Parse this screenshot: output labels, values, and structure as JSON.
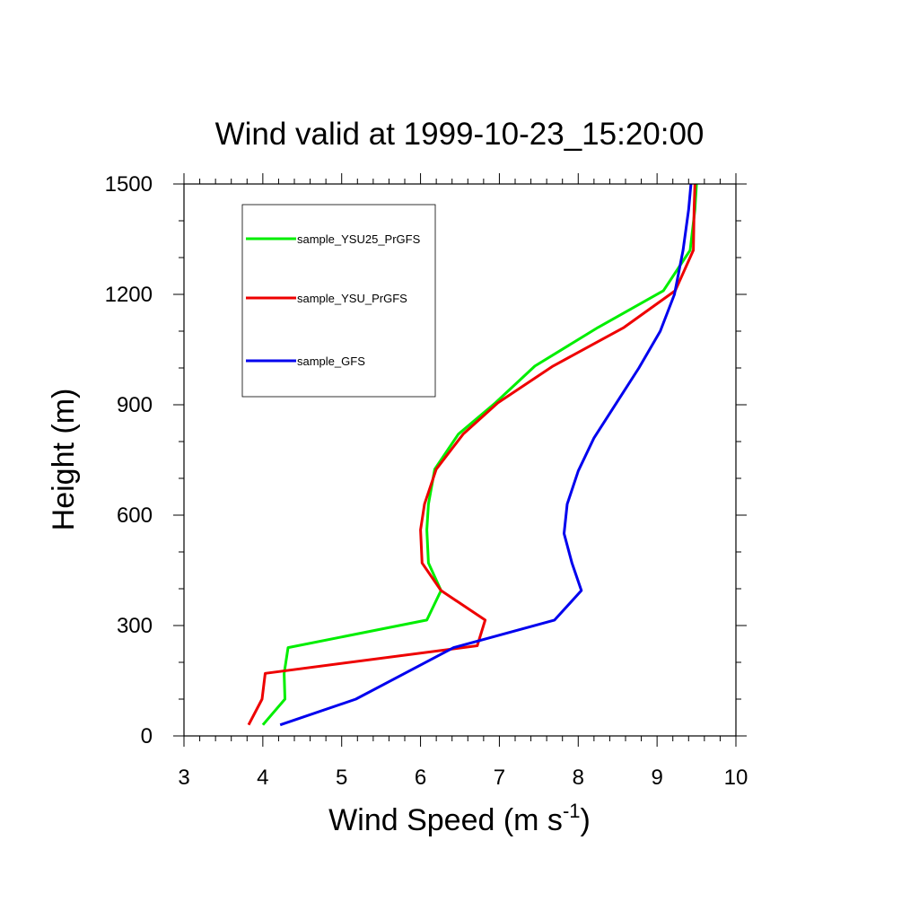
{
  "chart_data": {
    "type": "line",
    "title": "Wind valid at 1999-10-23_15:20:00",
    "xlabel": "Wind Speed (m s",
    "xlabel_sup": "-1",
    "xlabel_tail": ")",
    "ylabel": "Height (m)",
    "xlim": [
      3,
      10
    ],
    "ylim": [
      0,
      1500
    ],
    "x_ticks": [
      3,
      4,
      5,
      6,
      7,
      8,
      9,
      10
    ],
    "y_ticks": [
      0,
      300,
      600,
      900,
      1200,
      1500
    ],
    "x_tick_labels": [
      "3",
      "4",
      "5",
      "6",
      "7",
      "8",
      "9",
      "10"
    ],
    "y_tick_labels": [
      "0",
      "300",
      "600",
      "900",
      "1200",
      "1500"
    ],
    "grid": false,
    "legend_position": "top-left",
    "series": [
      {
        "name": "sample_YSU25_PrGFS",
        "color": "#00ee00",
        "x": [
          4.0,
          4.28,
          4.27,
          4.32,
          6.08,
          6.26,
          6.1,
          6.08,
          6.1,
          6.18,
          6.48,
          6.95,
          7.45,
          8.25,
          9.08,
          9.42,
          9.48,
          9.5
        ],
        "y": [
          30,
          100,
          170,
          240,
          315,
          395,
          470,
          560,
          630,
          725,
          820,
          905,
          1005,
          1110,
          1210,
          1320,
          1430,
          1500
        ]
      },
      {
        "name": "sample_YSU_PrGFS",
        "color": "#ee0000",
        "x": [
          3.82,
          3.99,
          4.03,
          6.72,
          6.82,
          6.26,
          6.02,
          6.0,
          6.05,
          6.2,
          6.54,
          6.98,
          7.68,
          8.58,
          9.23,
          9.46,
          9.47,
          9.48
        ],
        "y": [
          30,
          100,
          170,
          245,
          315,
          395,
          470,
          560,
          630,
          725,
          820,
          905,
          1005,
          1110,
          1210,
          1320,
          1430,
          1500
        ]
      },
      {
        "name": "sample_GFS",
        "color": "#0000ee",
        "x": [
          4.22,
          5.18,
          6.42,
          7.7,
          8.04,
          7.92,
          7.82,
          7.86,
          8.0,
          8.2,
          8.5,
          8.77,
          9.04,
          9.22,
          9.33,
          9.4,
          9.43
        ],
        "y": [
          30,
          100,
          240,
          315,
          395,
          470,
          550,
          630,
          720,
          810,
          910,
          1000,
          1100,
          1200,
          1320,
          1430,
          1500
        ]
      }
    ]
  }
}
